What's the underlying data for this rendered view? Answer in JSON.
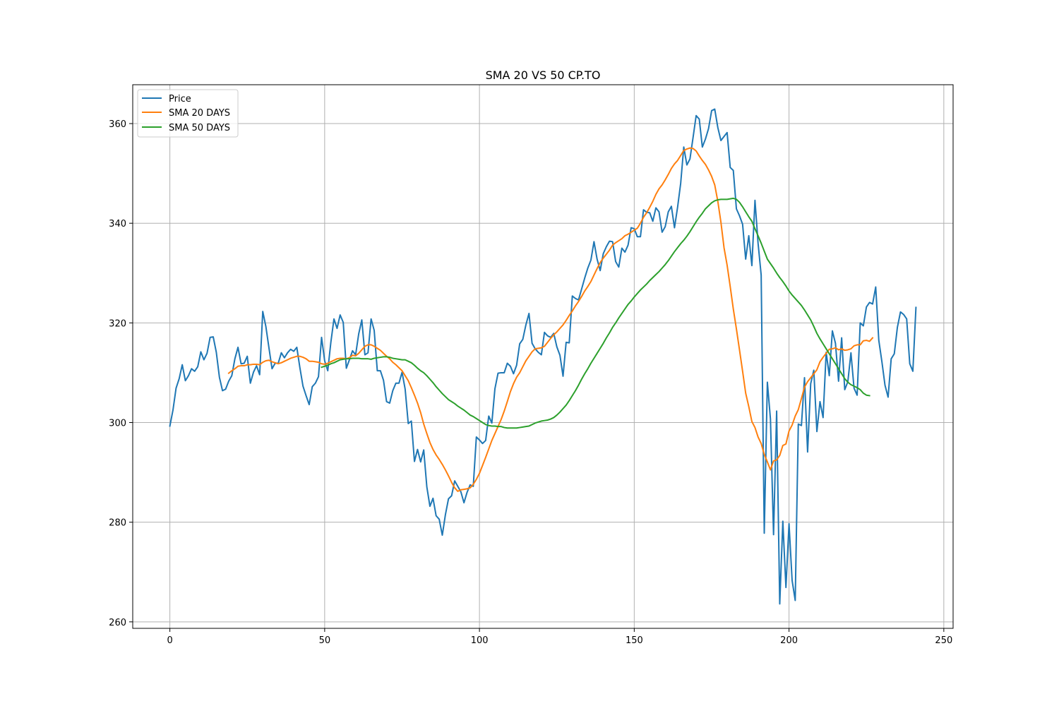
{
  "chart_data": {
    "type": "line",
    "title": "SMA 20 VS 50 CP.TO",
    "xlabel": "",
    "ylabel": "",
    "xlim": [
      -12,
      253
    ],
    "ylim": [
      258.7,
      367.8
    ],
    "x_ticks": [
      0,
      50,
      100,
      150,
      200,
      250
    ],
    "y_ticks": [
      260,
      280,
      300,
      320,
      340,
      360
    ],
    "grid": true,
    "legend_position": "upper-left",
    "colors": {
      "price": "#1f77b4",
      "sma20": "#ff7f0e",
      "sma50": "#2ca02c"
    },
    "series": [
      {
        "name": "Price",
        "color": "#1f77b4",
        "x_start": 0,
        "values": [
          299.3,
          302.5,
          306.9,
          308.8,
          311.6,
          308.4,
          309.4,
          310.8,
          310.3,
          311.2,
          314.2,
          312.6,
          313.9,
          317.1,
          317.2,
          314.1,
          309.1,
          306.4,
          306.7,
          308.3,
          309.4,
          312.8,
          315.1,
          311.8,
          311.9,
          313.3,
          307.9,
          310.1,
          311.4,
          309.6,
          322.3,
          319.3,
          315.0,
          310.8,
          311.9,
          311.9,
          314.0,
          313.0,
          314.0,
          314.7,
          314.3,
          315.1,
          311.0,
          307.3,
          305.4,
          303.6,
          307.2,
          307.9,
          309.2,
          317.1,
          312.4,
          310.4,
          316.1,
          320.8,
          318.9,
          321.6,
          320.1,
          310.9,
          312.6,
          314.4,
          313.6,
          317.8,
          320.6,
          313.6,
          314.0,
          320.8,
          318.5,
          310.4,
          310.4,
          308.5,
          304.2,
          303.9,
          306.4,
          307.9,
          307.9,
          310.1,
          306.7,
          299.8,
          300.3,
          292.2,
          294.6,
          292.1,
          294.5,
          287.1,
          283.2,
          284.8,
          281.3,
          280.6,
          277.4,
          281.5,
          284.7,
          285.3,
          288.3,
          287.2,
          286.1,
          283.9,
          286.0,
          287.5,
          287.2,
          297.1,
          296.5,
          295.8,
          296.4,
          301.3,
          299.9,
          306.8,
          309.9,
          310.0,
          310.0,
          311.9,
          311.3,
          309.8,
          311.5,
          315.8,
          316.7,
          319.6,
          321.9,
          315.9,
          314.8,
          314.1,
          313.6,
          318.1,
          317.4,
          317.1,
          317.9,
          315.2,
          313.5,
          309.3,
          316.1,
          316.0,
          325.4,
          324.9,
          324.6,
          326.8,
          329.0,
          331.0,
          332.6,
          336.3,
          332.8,
          330.5,
          333.9,
          335.3,
          336.4,
          336.3,
          332.3,
          331.2,
          335.0,
          334.2,
          335.6,
          339.1,
          338.9,
          337.3,
          337.3,
          342.7,
          342.2,
          342.1,
          340.4,
          343.1,
          342.3,
          338.2,
          339.3,
          342.3,
          343.4,
          339.1,
          343.2,
          348.0,
          355.3,
          351.7,
          352.9,
          357.2,
          361.6,
          360.9,
          355.3,
          356.9,
          359.0,
          362.6,
          362.9,
          359.2,
          356.6,
          357.4,
          358.2,
          351.2,
          350.6,
          342.9,
          341.5,
          339.8,
          332.8,
          337.5,
          331.5,
          344.6,
          336.0,
          329.6,
          277.8,
          308.1,
          300.7,
          277.5,
          302.3,
          263.6,
          280.2,
          266.9,
          279.7,
          268.3,
          264.3,
          299.7,
          299.4,
          309.0,
          294.1,
          307.8,
          310.5,
          298.2,
          304.2,
          301.0,
          314.1,
          309.4,
          318.4,
          315.9,
          308.3,
          317.0,
          306.6,
          308.2,
          314.0,
          306.9,
          305.5,
          320.0,
          319.4,
          323.2,
          324.1,
          323.8,
          327.2,
          316.5,
          312.2,
          307.5,
          305.1,
          312.8,
          313.8,
          319.1,
          322.2,
          321.7,
          320.8,
          311.8,
          310.3,
          323.1
        ]
      },
      {
        "name": "SMA 20 DAYS",
        "color": "#ff7f0e",
        "x_start": 19,
        "values": [
          309.9,
          310.4,
          310.8,
          311.3,
          311.4,
          311.4,
          311.6,
          311.6,
          311.7,
          311.7,
          311.6,
          312.1,
          312.4,
          312.5,
          312.2,
          312.0,
          311.8,
          312.0,
          312.3,
          312.6,
          312.9,
          313.1,
          313.3,
          313.3,
          313.1,
          312.8,
          312.3,
          312.3,
          312.2,
          312.1,
          311.8,
          311.7,
          311.9,
          312.2,
          312.5,
          312.8,
          312.9,
          312.9,
          312.8,
          313.0,
          313.5,
          313.4,
          313.9,
          314.6,
          315.3,
          315.6,
          315.6,
          315.3,
          314.9,
          314.5,
          313.9,
          313.3,
          312.8,
          312.1,
          311.6,
          311.0,
          310.4,
          309.4,
          308.4,
          307.0,
          305.5,
          303.9,
          302.0,
          299.7,
          297.8,
          296.0,
          294.6,
          293.5,
          292.6,
          291.6,
          290.5,
          289.3,
          288.0,
          286.9,
          286.2,
          286.5,
          286.6,
          286.7,
          286.9,
          287.6,
          288.6,
          289.8,
          291.4,
          293.0,
          294.7,
          296.4,
          297.8,
          299.2,
          300.6,
          302.3,
          304.2,
          306.2,
          307.8,
          309.1,
          310.0,
          311.2,
          312.4,
          313.3,
          314.2,
          314.8,
          314.9,
          315.0,
          315.3,
          316.1,
          316.9,
          317.6,
          318.2,
          318.9,
          319.6,
          320.5,
          321.5,
          322.4,
          323.4,
          324.3,
          325.3,
          326.4,
          327.3,
          328.3,
          329.6,
          330.9,
          332.1,
          333.0,
          333.8,
          334.6,
          335.6,
          336.1,
          336.5,
          336.9,
          337.5,
          337.8,
          338.2,
          338.6,
          339.0,
          340.0,
          341.2,
          342.1,
          343.2,
          344.4,
          345.8,
          346.9,
          347.7,
          348.7,
          349.8,
          351.0,
          351.9,
          352.6,
          353.6,
          354.6,
          354.9,
          355.1,
          355.0,
          354.5,
          353.5,
          352.6,
          351.8,
          350.7,
          349.4,
          347.7,
          344.4,
          340.2,
          335.1,
          331.6,
          327.3,
          322.8,
          318.8,
          314.6,
          310.3,
          305.9,
          303.2,
          300.2,
          299.0,
          297.1,
          295.8,
          293.6,
          292.1,
          290.5,
          292.3,
          292.5,
          293.4,
          295.4,
          295.7,
          298.3,
          299.5,
          301.3,
          302.6,
          304.8,
          307.1,
          308.2,
          309.0,
          309.8,
          310.6,
          312.2,
          313.1,
          313.9,
          314.7,
          314.8,
          315.0,
          314.6,
          314.8,
          314.5,
          314.6,
          314.8,
          315.4,
          315.6,
          315.6,
          316.4,
          316.5,
          316.3,
          317.0
        ]
      },
      {
        "name": "SMA 50 DAYS",
        "color": "#2ca02c",
        "x_start": 49,
        "values": [
          311.1,
          311.3,
          311.5,
          311.8,
          312.0,
          312.3,
          312.6,
          312.7,
          312.8,
          312.8,
          312.9,
          312.9,
          312.9,
          312.8,
          312.8,
          312.8,
          312.7,
          312.9,
          313.0,
          313.1,
          313.2,
          313.2,
          313.1,
          312.9,
          312.8,
          312.7,
          312.6,
          312.6,
          312.3,
          312.0,
          311.5,
          310.9,
          310.4,
          310.0,
          309.4,
          308.7,
          308.0,
          307.2,
          306.5,
          305.8,
          305.2,
          304.6,
          304.2,
          303.8,
          303.3,
          302.9,
          302.5,
          302.0,
          301.5,
          301.2,
          300.8,
          300.4,
          300.0,
          299.6,
          299.4,
          299.3,
          299.3,
          299.2,
          299.2,
          299.0,
          298.9,
          298.9,
          298.9,
          298.9,
          299.0,
          299.1,
          299.2,
          299.3,
          299.6,
          299.9,
          300.1,
          300.3,
          300.4,
          300.5,
          300.7,
          301.0,
          301.5,
          302.1,
          302.8,
          303.5,
          304.4,
          305.4,
          306.4,
          307.5,
          308.7,
          309.8,
          310.8,
          311.9,
          312.9,
          313.9,
          314.9,
          315.9,
          317.0,
          318.0,
          319.1,
          320.0,
          321.0,
          321.9,
          322.8,
          323.7,
          324.4,
          325.2,
          325.9,
          326.6,
          327.2,
          327.8,
          328.5,
          329.1,
          329.7,
          330.3,
          331.0,
          331.7,
          332.5,
          333.4,
          334.3,
          335.1,
          335.9,
          336.6,
          337.4,
          338.3,
          339.3,
          340.3,
          341.2,
          342.0,
          342.9,
          343.5,
          344.1,
          344.5,
          344.7,
          344.8,
          344.8,
          344.8,
          344.9,
          345.0,
          344.8,
          344.2,
          343.3,
          342.3,
          341.3,
          340.4,
          338.9,
          337.5,
          336.0,
          334.4,
          332.8,
          331.9,
          331.0,
          330.0,
          329.1,
          328.3,
          327.4,
          326.4,
          325.6,
          324.9,
          324.2,
          323.5,
          322.6,
          321.6,
          320.6,
          319.3,
          317.9,
          316.8,
          315.8,
          314.8,
          313.8,
          312.8,
          311.8,
          310.8,
          309.8,
          308.8,
          308.1,
          307.6,
          307.3,
          307.0,
          306.6,
          305.9,
          305.5,
          305.4
        ]
      }
    ]
  }
}
